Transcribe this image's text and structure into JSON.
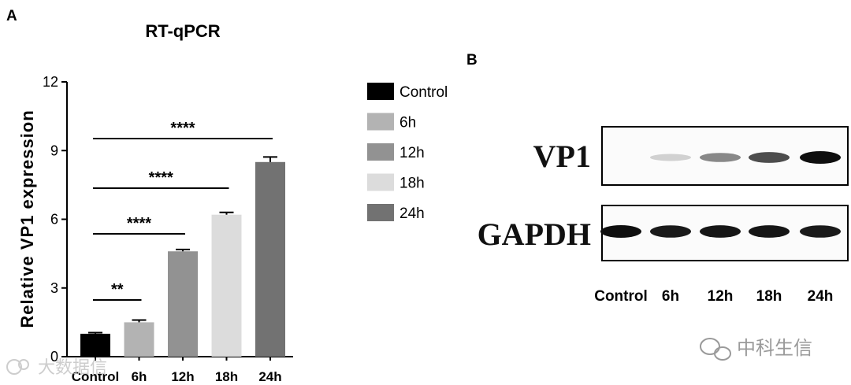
{
  "panel_a": {
    "label": "A"
  },
  "panel_b": {
    "label": "B"
  },
  "chart_data": {
    "type": "bar",
    "title": "RT-qPCR",
    "xlabel": "",
    "ylabel": "Relative  VP1  expression",
    "categories": [
      "Control",
      "6h",
      "12h",
      "18h",
      "24h"
    ],
    "values": [
      1.0,
      1.5,
      4.6,
      6.2,
      8.5
    ],
    "errors": [
      0.05,
      0.1,
      0.08,
      0.1,
      0.22
    ],
    "ylim": [
      0,
      12
    ],
    "yticks": [
      "0",
      "3",
      "6",
      "9",
      "12"
    ],
    "bar_colors": [
      "#000000",
      "#b3b3b3",
      "#929292",
      "#dcdcdc",
      "#727272"
    ],
    "significance": [
      {
        "from": 0,
        "to": 1,
        "label": "**"
      },
      {
        "from": 0,
        "to": 2,
        "label": "****"
      },
      {
        "from": 0,
        "to": 3,
        "label": "****"
      },
      {
        "from": 0,
        "to": 4,
        "label": "****"
      }
    ],
    "legend": {
      "placement": "right",
      "entries": [
        "Control",
        "6h",
        "12h",
        "18h",
        "24h"
      ]
    },
    "grid": false
  },
  "western_blot": {
    "rows": [
      {
        "label": "VP1",
        "intensities": [
          0.0,
          0.12,
          0.45,
          0.72,
          1.0
        ]
      },
      {
        "label": "GAPDH",
        "intensities": [
          1.0,
          0.95,
          0.97,
          0.97,
          0.95
        ]
      }
    ],
    "lanes": [
      "Control",
      "6h",
      "12h",
      "18h",
      "24h"
    ]
  },
  "watermarks": {
    "left": "大数据信",
    "right": "中科生信"
  }
}
